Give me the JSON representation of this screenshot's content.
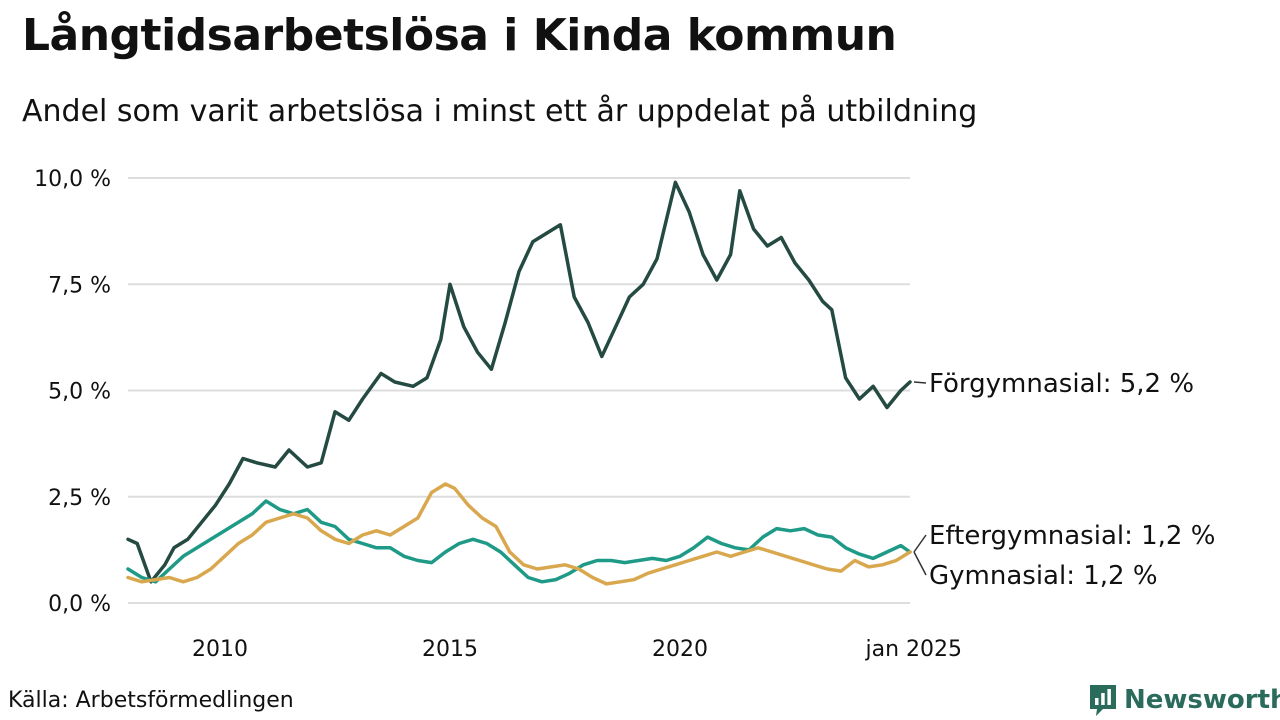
{
  "header": {
    "title": "Långtidsarbetslösa i Kinda kommun",
    "subtitle": "Andel som varit arbetslösa i minst ett år uppdelat på utbildning"
  },
  "footer": {
    "source": "Källa: Arbetsförmedlingen",
    "brand": "Newsworthy",
    "brand_color": "#2a6b5c"
  },
  "chart_data": {
    "type": "line",
    "title": "Långtidsarbetslösa i Kinda kommun",
    "subtitle": "Andel som varit arbetslösa i minst ett år uppdelat på utbildning",
    "xlabel": "",
    "ylabel": "",
    "xlim": [
      2008.0,
      2025.0
    ],
    "ylim": [
      0,
      10
    ],
    "y_ticks": [
      0,
      2.5,
      5,
      7.5,
      10
    ],
    "y_tick_labels": [
      "0,0 %",
      "2,5 %",
      "5,0 %",
      "7,5 %",
      "10,0 %"
    ],
    "x_ticks": [
      2010,
      2015,
      2020,
      2025
    ],
    "x_tick_labels": [
      "2010",
      "2015",
      "2020",
      "jan 2025"
    ],
    "grid": true,
    "legend": "end-of-line labels",
    "series": [
      {
        "name": "Förgymnasial",
        "label": "Förgymnasial: 5,2 %",
        "color": "#244a42",
        "x": [
          2008.0,
          2008.2,
          2008.5,
          2008.8,
          2009.0,
          2009.3,
          2009.6,
          2009.9,
          2010.2,
          2010.5,
          2010.8,
          2011.2,
          2011.5,
          2011.9,
          2012.2,
          2012.5,
          2012.8,
          2013.1,
          2013.5,
          2013.8,
          2014.2,
          2014.5,
          2014.8,
          2015.0,
          2015.3,
          2015.6,
          2015.9,
          2016.2,
          2016.5,
          2016.8,
          2017.1,
          2017.4,
          2017.7,
          2018.0,
          2018.3,
          2018.6,
          2018.9,
          2019.2,
          2019.5,
          2019.7,
          2019.9,
          2020.2,
          2020.5,
          2020.8,
          2021.1,
          2021.3,
          2021.6,
          2021.9,
          2022.2,
          2022.5,
          2022.8,
          2023.1,
          2023.3,
          2023.6,
          2023.9,
          2024.2,
          2024.5,
          2024.8,
          2025.0
        ],
        "values": [
          1.5,
          1.4,
          0.5,
          0.9,
          1.3,
          1.5,
          1.9,
          2.3,
          2.8,
          3.4,
          3.3,
          3.2,
          3.6,
          3.2,
          3.3,
          4.5,
          4.3,
          4.8,
          5.4,
          5.2,
          5.1,
          5.3,
          6.2,
          7.5,
          6.5,
          5.9,
          5.5,
          6.6,
          7.8,
          8.5,
          8.7,
          8.9,
          7.2,
          6.6,
          5.8,
          6.5,
          7.2,
          7.5,
          8.1,
          9.0,
          9.9,
          9.2,
          8.2,
          7.6,
          8.2,
          9.7,
          8.8,
          8.4,
          8.6,
          8.0,
          7.6,
          7.1,
          6.9,
          5.3,
          4.8,
          5.1,
          4.6,
          5.0,
          5.2
        ]
      },
      {
        "name": "Eftergymnasial",
        "label": "Eftergymnasial: 1,2 %",
        "color": "#1f9a87",
        "x": [
          2008.0,
          2008.3,
          2008.6,
          2008.9,
          2009.2,
          2009.5,
          2009.8,
          2010.1,
          2010.4,
          2010.7,
          2011.0,
          2011.3,
          2011.6,
          2011.9,
          2012.2,
          2012.5,
          2012.8,
          2013.1,
          2013.4,
          2013.7,
          2014.0,
          2014.3,
          2014.6,
          2014.9,
          2015.2,
          2015.5,
          2015.8,
          2016.1,
          2016.4,
          2016.7,
          2017.0,
          2017.3,
          2017.6,
          2017.9,
          2018.2,
          2018.5,
          2018.8,
          2019.1,
          2019.4,
          2019.7,
          2020.0,
          2020.3,
          2020.6,
          2020.9,
          2021.2,
          2021.5,
          2021.8,
          2022.1,
          2022.4,
          2022.7,
          2023.0,
          2023.3,
          2023.6,
          2023.9,
          2024.2,
          2024.5,
          2024.8,
          2025.0
        ],
        "values": [
          0.8,
          0.6,
          0.5,
          0.8,
          1.1,
          1.3,
          1.5,
          1.7,
          1.9,
          2.1,
          2.4,
          2.2,
          2.1,
          2.2,
          1.9,
          1.8,
          1.5,
          1.4,
          1.3,
          1.3,
          1.1,
          1.0,
          0.95,
          1.2,
          1.4,
          1.5,
          1.4,
          1.2,
          0.9,
          0.6,
          0.5,
          0.55,
          0.7,
          0.9,
          1.0,
          1.0,
          0.95,
          1.0,
          1.05,
          1.0,
          1.1,
          1.3,
          1.55,
          1.4,
          1.3,
          1.25,
          1.55,
          1.75,
          1.7,
          1.75,
          1.6,
          1.55,
          1.3,
          1.15,
          1.05,
          1.2,
          1.35,
          1.2
        ]
      },
      {
        "name": "Gymnasial",
        "label": "Gymnasial: 1,2 %",
        "color": "#d9a84e",
        "x": [
          2008.0,
          2008.3,
          2008.6,
          2008.9,
          2009.2,
          2009.5,
          2009.8,
          2010.1,
          2010.4,
          2010.7,
          2011.0,
          2011.3,
          2011.6,
          2011.9,
          2012.2,
          2012.5,
          2012.8,
          2013.1,
          2013.4,
          2013.7,
          2014.0,
          2014.3,
          2014.6,
          2014.9,
          2015.1,
          2015.4,
          2015.7,
          2016.0,
          2016.3,
          2016.6,
          2016.9,
          2017.2,
          2017.5,
          2017.8,
          2018.1,
          2018.4,
          2018.7,
          2019.0,
          2019.3,
          2019.6,
          2019.9,
          2020.2,
          2020.5,
          2020.8,
          2021.1,
          2021.4,
          2021.7,
          2022.0,
          2022.3,
          2022.6,
          2022.9,
          2023.2,
          2023.5,
          2023.8,
          2024.1,
          2024.4,
          2024.7,
          2025.0
        ],
        "values": [
          0.6,
          0.5,
          0.55,
          0.6,
          0.5,
          0.6,
          0.8,
          1.1,
          1.4,
          1.6,
          1.9,
          2.0,
          2.1,
          2.0,
          1.7,
          1.5,
          1.4,
          1.6,
          1.7,
          1.6,
          1.8,
          2.0,
          2.6,
          2.8,
          2.7,
          2.3,
          2.0,
          1.8,
          1.2,
          0.9,
          0.8,
          0.85,
          0.9,
          0.8,
          0.6,
          0.45,
          0.5,
          0.55,
          0.7,
          0.8,
          0.9,
          1.0,
          1.1,
          1.2,
          1.1,
          1.2,
          1.3,
          1.2,
          1.1,
          1.0,
          0.9,
          0.8,
          0.75,
          1.0,
          0.85,
          0.9,
          1.0,
          1.2
        ]
      }
    ]
  }
}
